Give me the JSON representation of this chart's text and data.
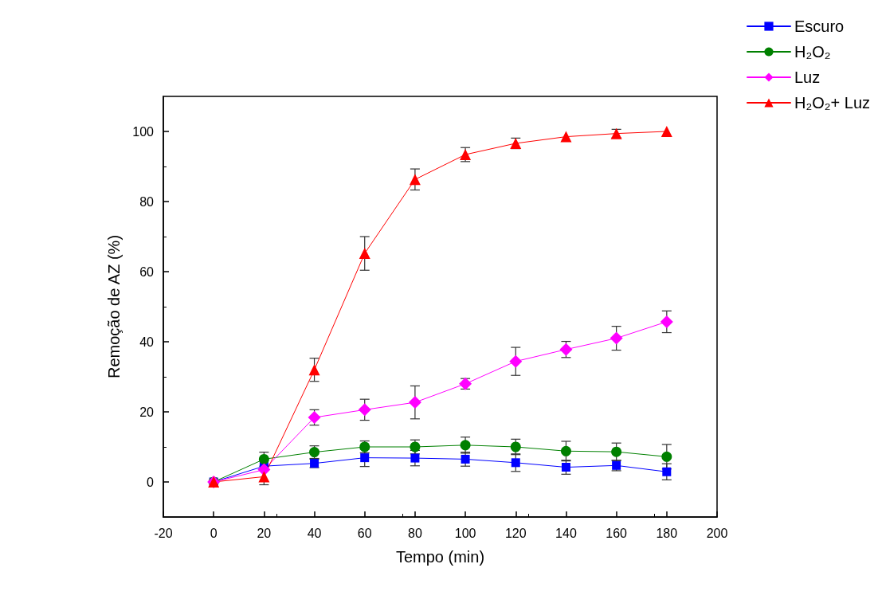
{
  "chart_data": {
    "type": "line",
    "xlabel": "Tempo (min)",
    "ylabel": "Remoção de AZ (%)",
    "x": [
      0,
      20,
      40,
      60,
      80,
      100,
      120,
      140,
      160,
      180
    ],
    "xlim": [
      -20,
      200
    ],
    "xticks": [
      -20,
      0,
      20,
      40,
      60,
      80,
      100,
      120,
      140,
      160,
      180,
      200
    ],
    "ylim": [
      -10,
      110
    ],
    "yticks": [
      0,
      20,
      40,
      60,
      80,
      100
    ],
    "grid": false,
    "legend": "top right",
    "line_style": "solid",
    "series": [
      {
        "name": "Escuro",
        "color": "#0000ff",
        "marker": "square",
        "values": [
          0,
          4.5,
          5.3,
          6.9,
          6.8,
          6.5,
          5.5,
          4.2,
          4.7,
          2.9
        ],
        "errors": [
          null,
          null,
          1.2,
          2.5,
          2.2,
          2,
          2.5,
          2,
          1.5,
          2.3
        ]
      },
      {
        "name": "H₂O₂",
        "color": "#008000",
        "marker": "circle",
        "values": [
          0,
          6.5,
          8.5,
          10,
          10,
          10.5,
          10,
          8.8,
          8.6,
          7.2
        ],
        "errors": [
          null,
          2,
          1.8,
          1.7,
          2,
          2.3,
          2.2,
          2.8,
          2.5,
          3.5
        ]
      },
      {
        "name": "Luz",
        "color": "#ff00ff",
        "marker": "diamond",
        "values": [
          0,
          3.5,
          18.4,
          20.6,
          22.7,
          28,
          34.4,
          37.8,
          41,
          45.7
        ],
        "errors": [
          null,
          null,
          2.2,
          3,
          4.7,
          1.5,
          4,
          2.3,
          3.4,
          3.1
        ]
      },
      {
        "name": "H₂O₂+ Luz",
        "color": "#ff0000",
        "marker": "triangle",
        "values": [
          0,
          1.5,
          32,
          65.2,
          86.3,
          93.4,
          96.6,
          98.5,
          99.4,
          100
        ],
        "errors": [
          null,
          2.3,
          3.3,
          4.8,
          3,
          2,
          1.5,
          null,
          1.2,
          null
        ]
      }
    ]
  }
}
